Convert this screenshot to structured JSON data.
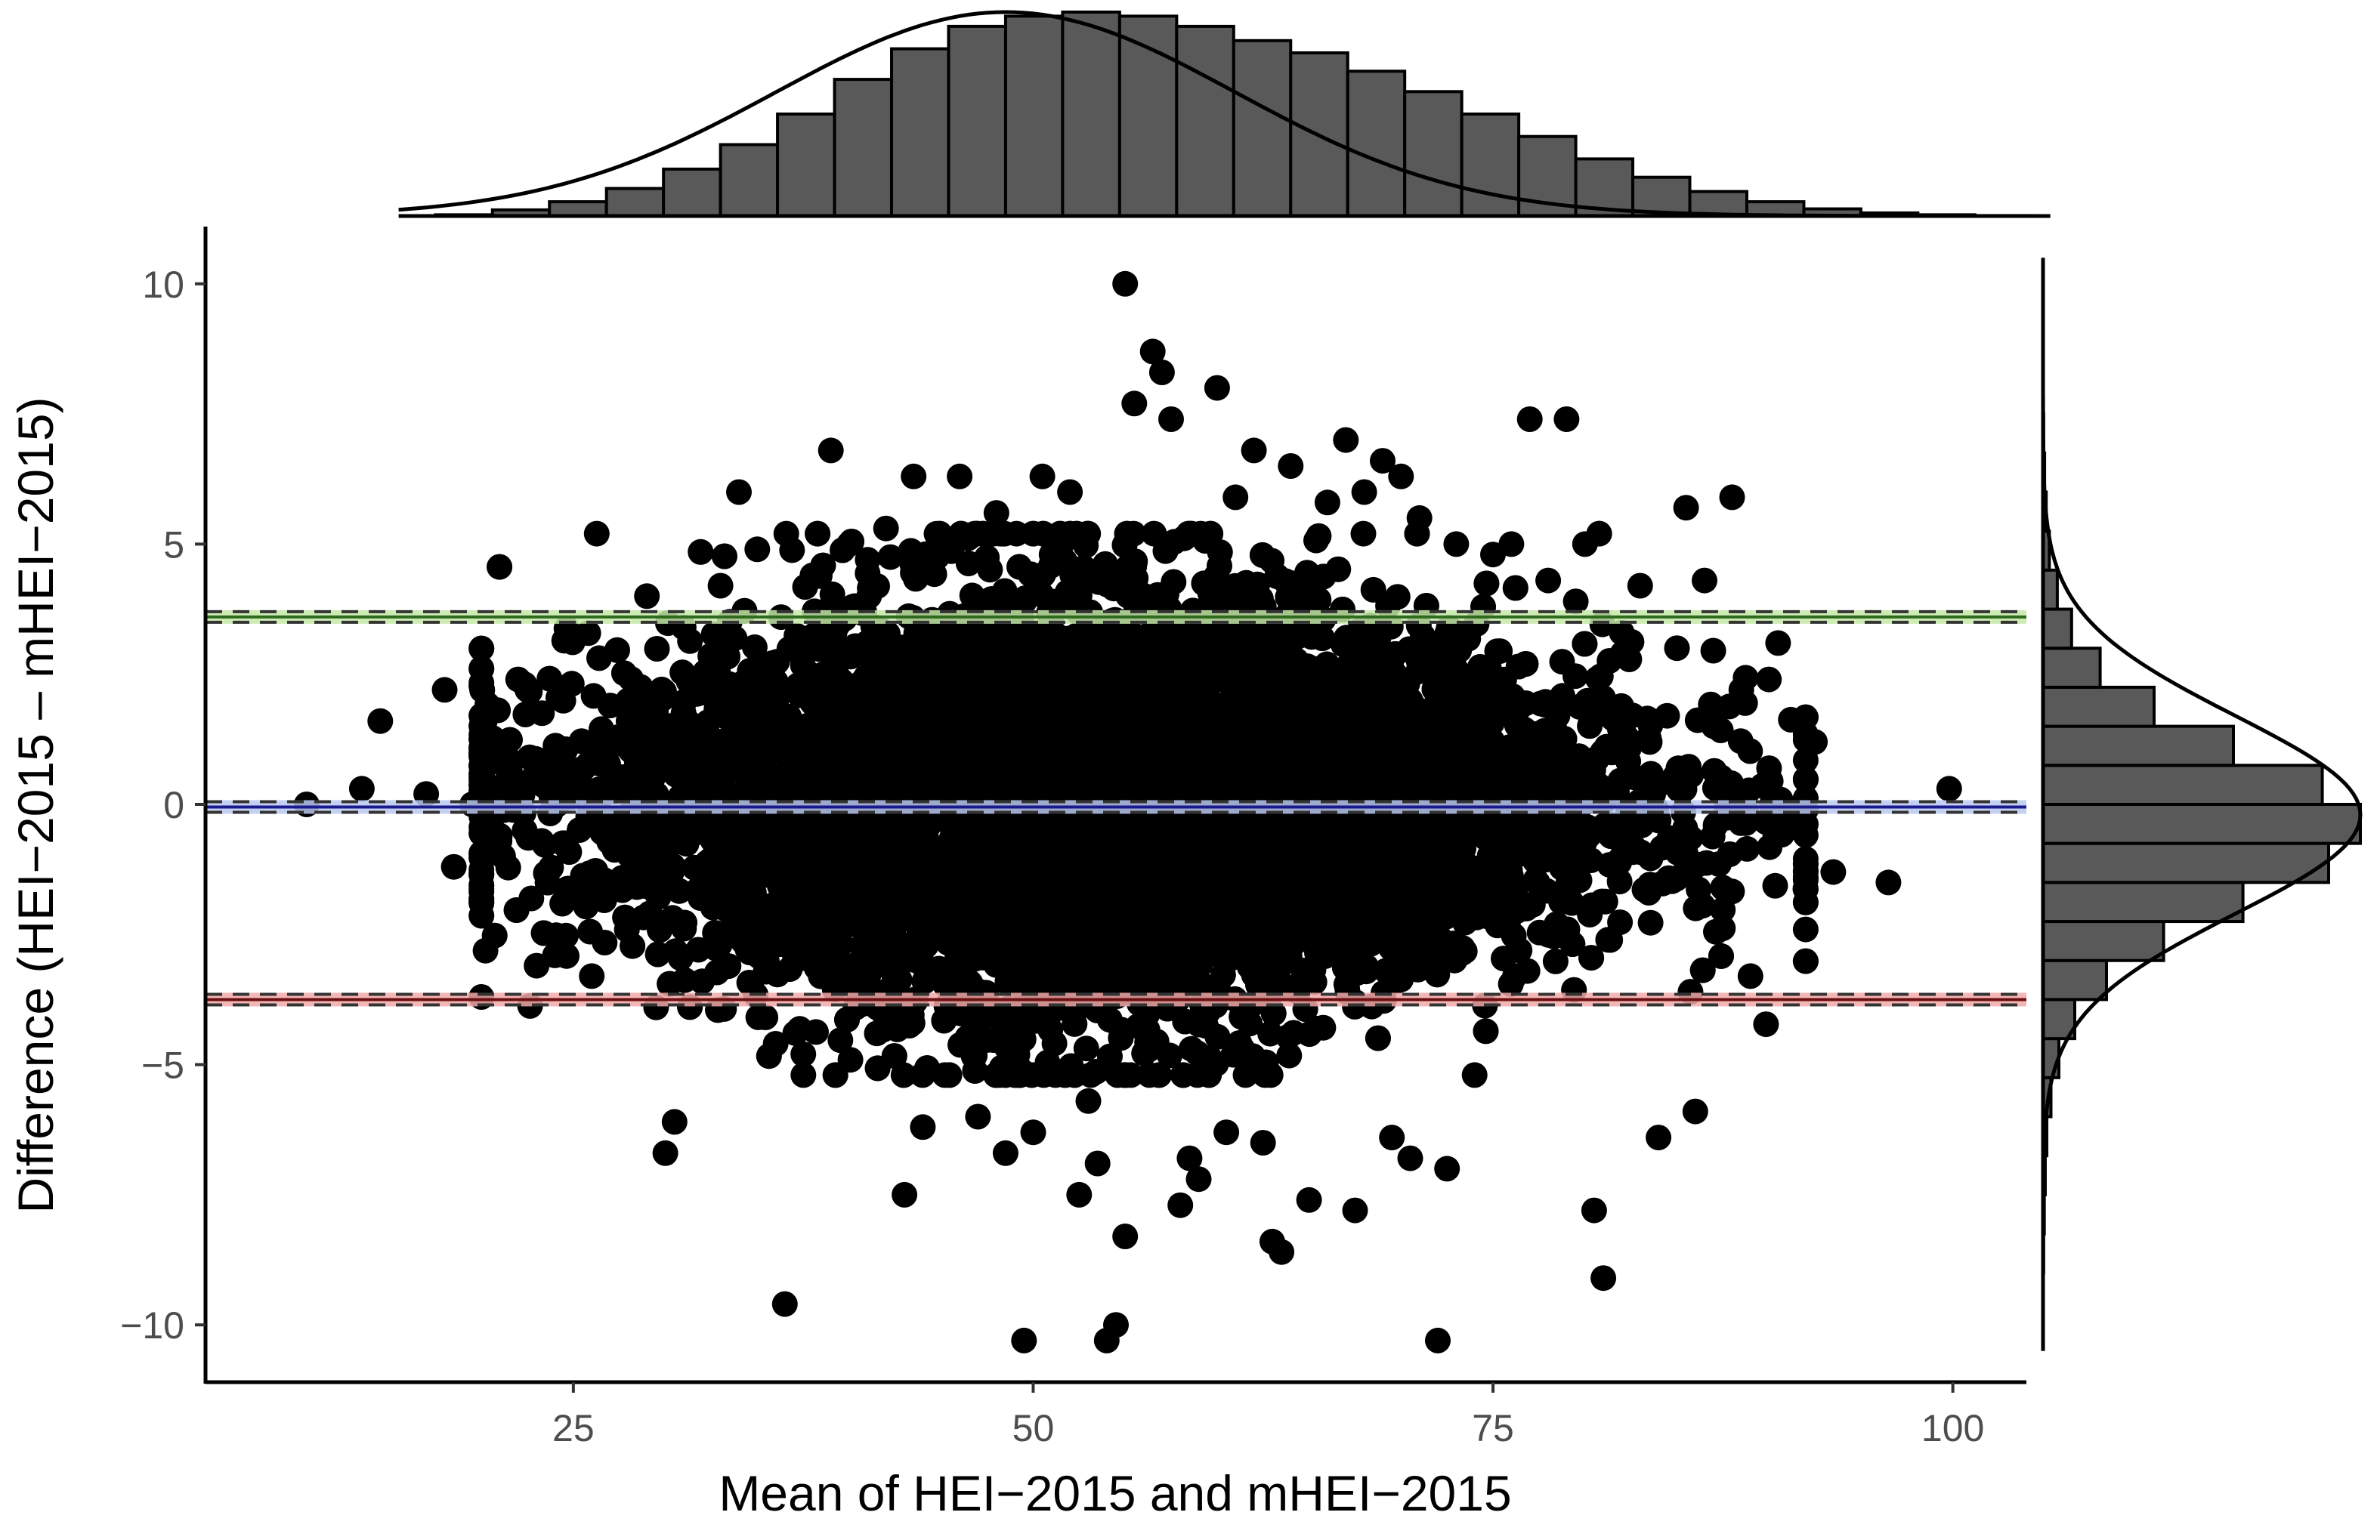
{
  "chart_data": {
    "type": "scatter",
    "subtype": "bland-altman with marginal histograms",
    "xlabel": "Mean of HEI−2015 and mHEI−2015",
    "ylabel": "Difference (HEI−2015 – mHEI−2015)",
    "xlim": [
      5,
      104
    ],
    "ylim": [
      -11.1,
      11.1
    ],
    "x_ticks": [
      25,
      50,
      75,
      100
    ],
    "x_tick_labels": [
      "25",
      "50",
      "75",
      "100"
    ],
    "y_ticks": [
      -10,
      -5,
      0,
      5,
      10
    ],
    "y_tick_labels": [
      "−10",
      "−5",
      "0",
      "5",
      "10"
    ],
    "grid": false,
    "legend": "none",
    "reference_lines": [
      {
        "role": "upper limit of agreement",
        "y": 3.6,
        "color": "#2e6b1e",
        "ci_color": "#c6e8a8"
      },
      {
        "role": "mean difference",
        "y": -0.05,
        "color": "#1a1a8c",
        "ci_color": "#b8c8ee"
      },
      {
        "role": "lower limit of agreement",
        "y": -3.75,
        "color": "#6b1010",
        "ci_color": "#f2a8a8"
      }
    ],
    "dense_core": {
      "description": "tens of thousands of overlapping points",
      "x_center": 54,
      "x_sd": 14,
      "difference_sd": 1.85
    },
    "outlier_points": [
      [
        10.5,
        0.0
      ],
      [
        13.5,
        0.3
      ],
      [
        14.5,
        1.6
      ],
      [
        17,
        0.2
      ],
      [
        18,
        2.2
      ],
      [
        18.5,
        -1.2
      ],
      [
        19.5,
        0.0
      ],
      [
        20,
        -3.7
      ],
      [
        21,
        -0.6
      ],
      [
        22,
        2.4
      ],
      [
        22.5,
        2.2
      ],
      [
        23,
        -3.1
      ],
      [
        24,
        -2.9
      ],
      [
        24.5,
        1.0
      ],
      [
        26,
        -3.3
      ],
      [
        27,
        1.9
      ],
      [
        28,
        1.6
      ],
      [
        29,
        4.0
      ],
      [
        29.5,
        -3.9
      ],
      [
        30,
        -6.7
      ],
      [
        30.5,
        -6.1
      ],
      [
        31,
        3.4
      ],
      [
        32,
        -3.4
      ],
      [
        33,
        4.2
      ],
      [
        34,
        6.0
      ],
      [
        35,
        4.9
      ],
      [
        36,
        -4.6
      ],
      [
        36.5,
        -9.6
      ],
      [
        37.5,
        -4.8
      ],
      [
        38,
        4.4
      ],
      [
        39,
        6.8
      ],
      [
        40,
        5.0
      ],
      [
        41,
        4.7
      ],
      [
        41.5,
        -4.4
      ],
      [
        42,
        5.3
      ],
      [
        43,
        -7.5
      ],
      [
        43.5,
        6.3
      ],
      [
        44,
        -6.2
      ],
      [
        45,
        5.0
      ],
      [
        46,
        6.3
      ],
      [
        47,
        -6.0
      ],
      [
        48,
        5.6
      ],
      [
        48.5,
        -6.7
      ],
      [
        49.5,
        -10.3
      ],
      [
        50,
        -6.3
      ],
      [
        50.5,
        6.3
      ],
      [
        51,
        4.8
      ],
      [
        52,
        6.0
      ],
      [
        52.5,
        -7.5
      ],
      [
        53,
        -5.7
      ],
      [
        53.5,
        -6.9
      ],
      [
        54,
        -10.3
      ],
      [
        54.5,
        -10.0
      ],
      [
        55,
        10.0
      ],
      [
        55.5,
        7.7
      ],
      [
        55,
        -8.3
      ],
      [
        56.5,
        8.7
      ],
      [
        57,
        8.3
      ],
      [
        57.5,
        7.4
      ],
      [
        58,
        -7.7
      ],
      [
        58.5,
        -6.8
      ],
      [
        59,
        -7.2
      ],
      [
        60,
        8.0
      ],
      [
        60.5,
        -6.3
      ],
      [
        61,
        5.9
      ],
      [
        62,
        6.8
      ],
      [
        62.5,
        -6.5
      ],
      [
        63,
        -8.4
      ],
      [
        63.5,
        -8.6
      ],
      [
        64,
        6.5
      ],
      [
        65,
        -7.6
      ],
      [
        66,
        5.8
      ],
      [
        67,
        7.0
      ],
      [
        67.5,
        -7.8
      ],
      [
        68,
        6.0
      ],
      [
        69,
        6.6
      ],
      [
        69.5,
        -6.4
      ],
      [
        70,
        6.3
      ],
      [
        70.5,
        -6.8
      ],
      [
        71,
        5.5
      ],
      [
        72,
        -10.3
      ],
      [
        72.5,
        -7.0
      ],
      [
        73,
        5.0
      ],
      [
        74,
        -5.2
      ],
      [
        75,
        4.8
      ],
      [
        76,
        5.0
      ],
      [
        77,
        7.4
      ],
      [
        78,
        4.3
      ],
      [
        79,
        7.4
      ],
      [
        79.5,
        3.9
      ],
      [
        80,
        5.0
      ],
      [
        80.5,
        -7.8
      ],
      [
        81,
        -9.1
      ],
      [
        82,
        3.3
      ],
      [
        83,
        4.2
      ],
      [
        84,
        -6.4
      ],
      [
        85,
        3.0
      ],
      [
        85.5,
        5.7
      ],
      [
        86,
        -5.9
      ],
      [
        86.5,
        4.3
      ],
      [
        87,
        1.5
      ],
      [
        87.5,
        -1.6
      ],
      [
        88,
        5.9
      ],
      [
        88.5,
        2.2
      ],
      [
        89,
        -3.3
      ],
      [
        90,
        2.4
      ],
      [
        90.5,
        3.1
      ],
      [
        91,
        -0.4
      ],
      [
        92,
        -1.3
      ],
      [
        92.5,
        1.2
      ],
      [
        93.5,
        -1.3
      ],
      [
        96.5,
        -1.5
      ],
      [
        99.8,
        0.3
      ]
    ],
    "top_histogram": {
      "axis": "x",
      "bin_start": 17.5,
      "bin_width": 3.1,
      "counts": [
        0.006,
        0.03,
        0.07,
        0.135,
        0.23,
        0.35,
        0.5,
        0.67,
        0.82,
        0.93,
        0.98,
        1.0,
        0.98,
        0.93,
        0.86,
        0.8,
        0.71,
        0.61,
        0.5,
        0.39,
        0.28,
        0.19,
        0.12,
        0.07,
        0.035,
        0.015,
        0.006,
        0.002
      ],
      "density_peak_x": 48.5,
      "density_sd": 12.5
    },
    "right_histogram": {
      "axis": "y",
      "bin_start": -10.5,
      "bin_width": 0.75,
      "counts": [
        0.0,
        0.0,
        0.002,
        0.004,
        0.007,
        0.012,
        0.025,
        0.05,
        0.1,
        0.2,
        0.38,
        0.63,
        0.9,
        1.0,
        0.88,
        0.6,
        0.35,
        0.18,
        0.09,
        0.045,
        0.02,
        0.01,
        0.005,
        0.002,
        0.001,
        0.0,
        0.0,
        0.0
      ],
      "density_peak_y": -0.2,
      "density_sd": 1.9
    }
  }
}
